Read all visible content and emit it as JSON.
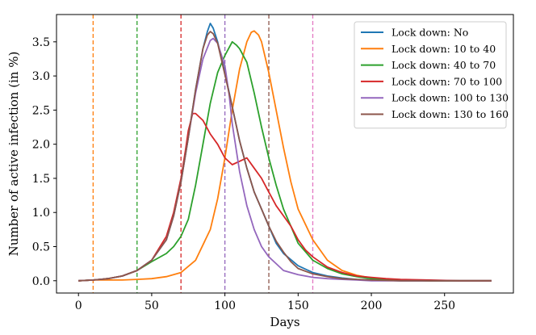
{
  "chart_data": {
    "type": "line",
    "title": "",
    "xlabel": "Days",
    "ylabel": "Number of active infection (in %)",
    "xlim": [
      -15,
      297
    ],
    "ylim": [
      -0.18,
      3.9
    ],
    "xticks": [
      0,
      50,
      100,
      150,
      200,
      250
    ],
    "yticks": [
      0.0,
      0.5,
      1.0,
      1.5,
      2.0,
      2.5,
      3.0,
      3.5
    ],
    "xtick_labels": [
      "0",
      "50",
      "100",
      "150",
      "200",
      "250"
    ],
    "ytick_labels": [
      "0.0",
      "0.5",
      "1.0",
      "1.5",
      "2.0",
      "2.5",
      "3.0",
      "3.5"
    ],
    "grid": false,
    "legend_position": "top-right",
    "vlines": [
      {
        "x": 10,
        "color": "#ff7f0e"
      },
      {
        "x": 40,
        "color": "#2ca02c"
      },
      {
        "x": 70,
        "color": "#d62728"
      },
      {
        "x": 100,
        "color": "#9467bd"
      },
      {
        "x": 130,
        "color": "#8c564b"
      },
      {
        "x": 160,
        "color": "#e377c2"
      }
    ],
    "series": [
      {
        "name": "Lock down: No",
        "color": "#1f77b4",
        "x": [
          0,
          10,
          20,
          30,
          40,
          50,
          60,
          65,
          70,
          75,
          80,
          85,
          88,
          90,
          92,
          95,
          100,
          105,
          110,
          115,
          120,
          125,
          130,
          135,
          140,
          150,
          160,
          170,
          180,
          190,
          200,
          220,
          240,
          260,
          282
        ],
        "y": [
          0.0,
          0.01,
          0.03,
          0.07,
          0.15,
          0.3,
          0.6,
          0.95,
          1.45,
          2.1,
          2.8,
          3.4,
          3.65,
          3.77,
          3.7,
          3.5,
          3.05,
          2.55,
          2.05,
          1.65,
          1.3,
          1.05,
          0.8,
          0.55,
          0.4,
          0.22,
          0.12,
          0.07,
          0.04,
          0.02,
          0.01,
          0.0,
          0.0,
          0.0,
          0.0
        ]
      },
      {
        "name": "Lock down: 10 to 40",
        "color": "#ff7f0e",
        "x": [
          0,
          10,
          20,
          30,
          40,
          50,
          60,
          70,
          80,
          90,
          95,
          100,
          105,
          110,
          115,
          118,
          120,
          123,
          125,
          130,
          135,
          140,
          145,
          150,
          160,
          170,
          180,
          190,
          200,
          220,
          240,
          260,
          282
        ],
        "y": [
          0.0,
          0.01,
          0.01,
          0.01,
          0.02,
          0.03,
          0.06,
          0.12,
          0.3,
          0.75,
          1.2,
          1.8,
          2.5,
          3.1,
          3.5,
          3.64,
          3.66,
          3.6,
          3.5,
          3.05,
          2.5,
          1.95,
          1.45,
          1.05,
          0.6,
          0.3,
          0.15,
          0.08,
          0.04,
          0.01,
          0.0,
          0.0,
          0.0
        ]
      },
      {
        "name": "Lock down: 40 to 70",
        "color": "#2ca02c",
        "x": [
          0,
          10,
          20,
          30,
          40,
          50,
          60,
          65,
          70,
          75,
          80,
          85,
          90,
          95,
          100,
          105,
          108,
          110,
          115,
          120,
          125,
          130,
          135,
          140,
          145,
          150,
          160,
          170,
          180,
          190,
          200,
          220,
          240,
          260,
          282
        ],
        "y": [
          0.0,
          0.01,
          0.03,
          0.07,
          0.15,
          0.28,
          0.4,
          0.5,
          0.65,
          0.9,
          1.4,
          2.0,
          2.6,
          3.05,
          3.3,
          3.5,
          3.45,
          3.4,
          3.2,
          2.75,
          2.25,
          1.8,
          1.4,
          1.05,
          0.8,
          0.55,
          0.3,
          0.18,
          0.1,
          0.06,
          0.03,
          0.01,
          0.0,
          0.0,
          0.0
        ]
      },
      {
        "name": "Lock down: 70 to 100",
        "color": "#d62728",
        "x": [
          0,
          10,
          20,
          30,
          40,
          50,
          60,
          65,
          70,
          73,
          75,
          78,
          80,
          85,
          90,
          95,
          100,
          105,
          110,
          115,
          120,
          125,
          130,
          135,
          140,
          145,
          150,
          155,
          160,
          170,
          180,
          190,
          200,
          210,
          220,
          240,
          260,
          282
        ],
        "y": [
          0.0,
          0.01,
          0.03,
          0.07,
          0.15,
          0.3,
          0.65,
          1.0,
          1.5,
          1.9,
          2.2,
          2.45,
          2.45,
          2.35,
          2.15,
          2.0,
          1.8,
          1.7,
          1.75,
          1.8,
          1.65,
          1.5,
          1.3,
          1.1,
          0.95,
          0.8,
          0.6,
          0.45,
          0.35,
          0.2,
          0.12,
          0.07,
          0.05,
          0.03,
          0.02,
          0.01,
          0.0,
          0.0
        ]
      },
      {
        "name": "Lock down: 100 to 130",
        "color": "#9467bd",
        "x": [
          0,
          10,
          20,
          30,
          40,
          50,
          60,
          65,
          70,
          75,
          80,
          85,
          90,
          92,
          95,
          100,
          103,
          105,
          110,
          115,
          120,
          125,
          130,
          135,
          140,
          150,
          160,
          170,
          180,
          190,
          200,
          220,
          240,
          260,
          282
        ],
        "y": [
          0.0,
          0.01,
          0.03,
          0.07,
          0.15,
          0.3,
          0.6,
          0.95,
          1.45,
          2.1,
          2.75,
          3.25,
          3.52,
          3.55,
          3.48,
          3.15,
          2.7,
          2.3,
          1.6,
          1.1,
          0.75,
          0.5,
          0.35,
          0.25,
          0.15,
          0.09,
          0.05,
          0.03,
          0.02,
          0.01,
          0.0,
          0.0,
          0.0,
          0.0,
          0.0
        ]
      },
      {
        "name": "Lock down: 130 to 160",
        "color": "#8c564b",
        "x": [
          0,
          10,
          20,
          30,
          40,
          50,
          60,
          65,
          70,
          75,
          80,
          85,
          88,
          90,
          92,
          95,
          100,
          105,
          110,
          115,
          120,
          125,
          130,
          135,
          140,
          145,
          150,
          160,
          170,
          180,
          190,
          200,
          220,
          240,
          260,
          282
        ],
        "y": [
          0.0,
          0.01,
          0.03,
          0.07,
          0.15,
          0.3,
          0.6,
          0.95,
          1.45,
          2.1,
          2.8,
          3.4,
          3.6,
          3.65,
          3.62,
          3.48,
          3.02,
          2.55,
          2.05,
          1.65,
          1.3,
          1.05,
          0.8,
          0.58,
          0.42,
          0.28,
          0.18,
          0.1,
          0.06,
          0.03,
          0.02,
          0.01,
          0.0,
          0.0,
          0.0,
          0.0
        ]
      }
    ]
  }
}
